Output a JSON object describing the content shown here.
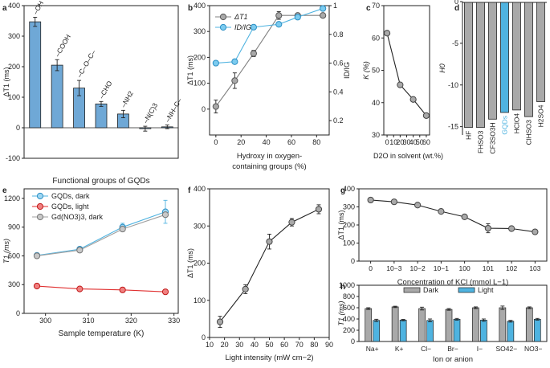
{
  "chart_data": [
    {
      "panel": "a",
      "type": "bar",
      "ylabel": "ΔT1 (ms)",
      "xlabel": "Functional groups of GQDs",
      "ylim": [
        -100,
        400
      ],
      "yticks": [
        -100,
        0,
        100,
        200,
        300,
        400
      ],
      "categories": [
        "–OH",
        "–COOH",
        "–C–O–C–",
        "–CHO",
        "–NH2",
        "–N(C)3",
        "–NH–C–"
      ],
      "values": [
        347,
        205,
        130,
        78,
        45,
        -3,
        3
      ],
      "errors": [
        15,
        18,
        25,
        8,
        12,
        8,
        6
      ],
      "bar_color": "#6fa8d6"
    },
    {
      "panel": "b",
      "type": "line",
      "xlabel_lines": [
        "Hydroxy in oxygen-",
        "containing groups (%)"
      ],
      "ylabel_left": "ΔT1 (ms)",
      "ylabel_right": "ID/IG",
      "xlim": [
        -5,
        90
      ],
      "xticks": [
        0,
        20,
        40,
        60,
        80
      ],
      "ylim_left": [
        -100,
        400
      ],
      "yticks_left": [
        0,
        100,
        200,
        300,
        400
      ],
      "ylim_right": [
        0.1,
        1.0
      ],
      "yticks_right": [
        0.2,
        0.4,
        0.6,
        0.8,
        1.0
      ],
      "legend": [
        "ΔT1",
        "ID/IG"
      ],
      "series": [
        {
          "name": "ΔT1",
          "axis": "left",
          "color": "#808080",
          "x": [
            0,
            15,
            30,
            50,
            65,
            85
          ],
          "y": [
            10,
            110,
            215,
            362,
            362,
            362
          ],
          "err": [
            25,
            30,
            12,
            15,
            0,
            0
          ]
        },
        {
          "name": "ID/IG",
          "axis": "right",
          "color": "#4fb3e0",
          "x": [
            0,
            15,
            30,
            50,
            65,
            85
          ],
          "y": [
            0.6,
            0.61,
            0.85,
            0.87,
            0.92,
            0.98
          ]
        }
      ]
    },
    {
      "panel": "c",
      "type": "line",
      "xlabel": "D2O in solvent (wt.%)",
      "ylabel": "K (%)",
      "xlim": [
        -5,
        65
      ],
      "xticks": [
        0,
        10,
        20,
        30,
        40,
        50,
        60
      ],
      "ylim": [
        30,
        70
      ],
      "yticks": [
        30,
        40,
        50,
        60,
        70
      ],
      "x": [
        0,
        20,
        40,
        60
      ],
      "y": [
        61.5,
        45.5,
        41,
        36
      ]
    },
    {
      "panel": "d",
      "type": "bar",
      "ylabel": "H0",
      "ylim": [
        -16,
        0
      ],
      "yticks": [
        -15,
        -10,
        -5,
        0
      ],
      "categories": [
        "HF",
        "FHSO3",
        "CF3SO3H",
        "GQDs",
        "HClO4",
        "ClHSO3",
        "H2SO4"
      ],
      "values": [
        -15.1,
        -15.1,
        -14.1,
        -13.3,
        -13.0,
        -13.8,
        -12.0
      ],
      "highlight": "GQDs",
      "highlight_color": "#4fb3e0",
      "bar_color": "#a9a9a9"
    },
    {
      "panel": "e",
      "type": "line",
      "xlabel": "Sample temperature (K)",
      "ylabel": "T1 (ms)",
      "xlim": [
        295,
        331
      ],
      "xticks": [
        300,
        310,
        320,
        330
      ],
      "ylim": [
        0,
        1300
      ],
      "yticks": [
        0,
        300,
        600,
        900,
        1200
      ],
      "series": [
        {
          "name": "GQDs, dark",
          "color": "#4fb3e0",
          "x": [
            298,
            308,
            318,
            328
          ],
          "y": [
            605,
            670,
            900,
            1060
          ],
          "err": [
            15,
            20,
            40,
            120
          ]
        },
        {
          "name": "GQDs, light",
          "color": "#e03030",
          "x": [
            298,
            308,
            318,
            328
          ],
          "y": [
            285,
            255,
            245,
            225
          ]
        },
        {
          "name": "Gd(NO3)3, dark",
          "color": "#a0a0a0",
          "x": [
            298,
            308,
            318,
            328
          ],
          "y": [
            600,
            660,
            880,
            1030
          ]
        }
      ]
    },
    {
      "panel": "f",
      "type": "line",
      "xlabel": "Light intensity (mW cm−2)",
      "ylabel": "ΔT1 (ms)",
      "xlim": [
        10,
        90
      ],
      "xticks": [
        10,
        20,
        30,
        40,
        50,
        60,
        70,
        80,
        90
      ],
      "ylim": [
        0,
        400
      ],
      "yticks": [
        0,
        100,
        200,
        300,
        400
      ],
      "x": [
        17,
        34,
        50,
        65,
        83
      ],
      "y": [
        42,
        130,
        258,
        310,
        345
      ],
      "err": [
        15,
        12,
        20,
        10,
        12
      ]
    },
    {
      "panel": "g",
      "type": "line",
      "xlabel": "Concentration of KCl (mmol L−1)",
      "ylabel": "ΔT1 (ms)",
      "categories": [
        "0",
        "10−3",
        "10−2",
        "10−1",
        "100",
        "101",
        "102",
        "103"
      ],
      "ylim": [
        0,
        400
      ],
      "yticks": [
        0,
        100,
        200,
        300,
        400
      ],
      "values": [
        338,
        328,
        310,
        275,
        245,
        182,
        180,
        162
      ],
      "err": [
        8,
        8,
        8,
        10,
        8,
        25,
        12,
        10
      ]
    },
    {
      "panel": "h",
      "type": "bar",
      "xlabel": "Ion or anion",
      "ylabel": "T1 (ms)",
      "categories": [
        "Na+",
        "K+",
        "Cl−",
        "Br−",
        "I−",
        "SO42−",
        "NO3−"
      ],
      "ylim": [
        0,
        1000
      ],
      "yticks": [
        0,
        200,
        400,
        600,
        800,
        1000
      ],
      "series": [
        {
          "name": "Dark",
          "color": "#a9a9a9",
          "values": [
            585,
            615,
            585,
            570,
            600,
            600,
            600
          ],
          "err": [
            15,
            12,
            25,
            15,
            15,
            30,
            15
          ]
        },
        {
          "name": "Light",
          "color": "#4fb3e0",
          "values": [
            375,
            380,
            375,
            395,
            380,
            360,
            395
          ],
          "err": [
            20,
            12,
            25,
            15,
            20,
            15,
            15
          ]
        }
      ]
    }
  ]
}
